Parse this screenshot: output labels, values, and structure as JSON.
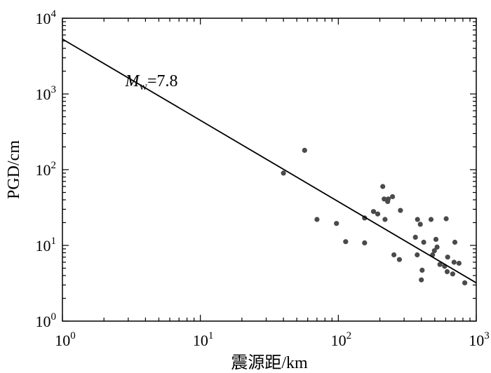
{
  "chart_data": {
    "type": "scatter",
    "xlabel": "震源距/km",
    "ylabel": "PGD/cm",
    "x_scale": "log",
    "y_scale": "log",
    "xlim": [
      1,
      1000
    ],
    "ylim": [
      1,
      10000
    ],
    "x_ticks": [
      {
        "value": 1,
        "base": "10",
        "exp": "0"
      },
      {
        "value": 10,
        "base": "10",
        "exp": "1"
      },
      {
        "value": 100,
        "base": "10",
        "exp": "2"
      },
      {
        "value": 1000,
        "base": "10",
        "exp": "3"
      }
    ],
    "y_ticks": [
      {
        "value": 1,
        "base": "10",
        "exp": "0"
      },
      {
        "value": 10,
        "base": "10",
        "exp": "1"
      },
      {
        "value": 100,
        "base": "10",
        "exp": "2"
      },
      {
        "value": 1000,
        "base": "10",
        "exp": "3"
      },
      {
        "value": 10000,
        "base": "10",
        "exp": "4"
      }
    ],
    "grid": false,
    "annotation": {
      "italic": "M",
      "subscript": "w",
      "text": "=7.8",
      "x": 5,
      "y": 1500
    },
    "fit_line": {
      "points": [
        [
          1,
          5300
        ],
        [
          1000,
          3.2
        ]
      ]
    },
    "points": [
      [
        40,
        90
      ],
      [
        57,
        180
      ],
      [
        70,
        22
      ],
      [
        97,
        19.5
      ],
      [
        113,
        11.2
      ],
      [
        155,
        23
      ],
      [
        155,
        10.8
      ],
      [
        180,
        28
      ],
      [
        193,
        26
      ],
      [
        210,
        60
      ],
      [
        215,
        41
      ],
      [
        230,
        41
      ],
      [
        228,
        38
      ],
      [
        247,
        44
      ],
      [
        218,
        22
      ],
      [
        282,
        29
      ],
      [
        253,
        7.5
      ],
      [
        277,
        6.5
      ],
      [
        362,
        12.8
      ],
      [
        375,
        22
      ],
      [
        393,
        19
      ],
      [
        373,
        7.5
      ],
      [
        416,
        11
      ],
      [
        405,
        4.7
      ],
      [
        400,
        3.5
      ],
      [
        470,
        22
      ],
      [
        482,
        7.5
      ],
      [
        497,
        8.5
      ],
      [
        520,
        9.5
      ],
      [
        510,
        12
      ],
      [
        545,
        5.6
      ],
      [
        590,
        5.3
      ],
      [
        605,
        22.5
      ],
      [
        620,
        7
      ],
      [
        615,
        4.5
      ],
      [
        675,
        4.2
      ],
      [
        690,
        6
      ],
      [
        700,
        11
      ],
      [
        750,
        5.8
      ],
      [
        825,
        3.2
      ]
    ]
  },
  "colors": {
    "axis": "#000000",
    "line": "#000000",
    "point": "#4a4a4a"
  }
}
